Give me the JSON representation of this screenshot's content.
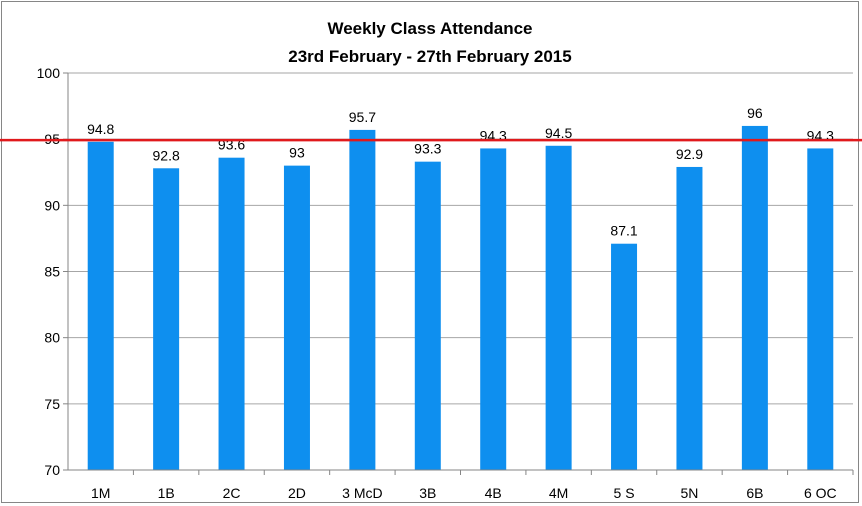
{
  "chart_data": {
    "type": "bar",
    "title": "Weekly Class Attendance",
    "subtitle": "23rd February - 27th February 2015",
    "categories": [
      "1M",
      "1B",
      "2C",
      "2D",
      "3 McD",
      "3B",
      "4B",
      "4M",
      "5 S",
      "5N",
      "6B",
      "6 OC"
    ],
    "values": [
      94.8,
      92.8,
      93.6,
      93,
      95.7,
      93.3,
      94.3,
      94.5,
      87.1,
      92.9,
      96,
      94.3
    ],
    "value_labels": [
      "94.8",
      "92.8",
      "93.6",
      "93",
      "95.7",
      "93.3",
      "94.3",
      "94.5",
      "87.1",
      "92.9",
      "96",
      "94.3"
    ],
    "ylim": [
      70,
      100
    ],
    "yticks": [
      "70",
      "75",
      "80",
      "85",
      "90",
      "95",
      "100"
    ],
    "ytick_values": [
      70,
      75,
      80,
      85,
      90,
      95,
      100
    ],
    "target_line": 95,
    "grid": true,
    "legend": "none",
    "colors": {
      "bar": "#0e8fef",
      "target": "#e0191c",
      "grid": "#a6a6a6",
      "axis": "#868686"
    }
  }
}
